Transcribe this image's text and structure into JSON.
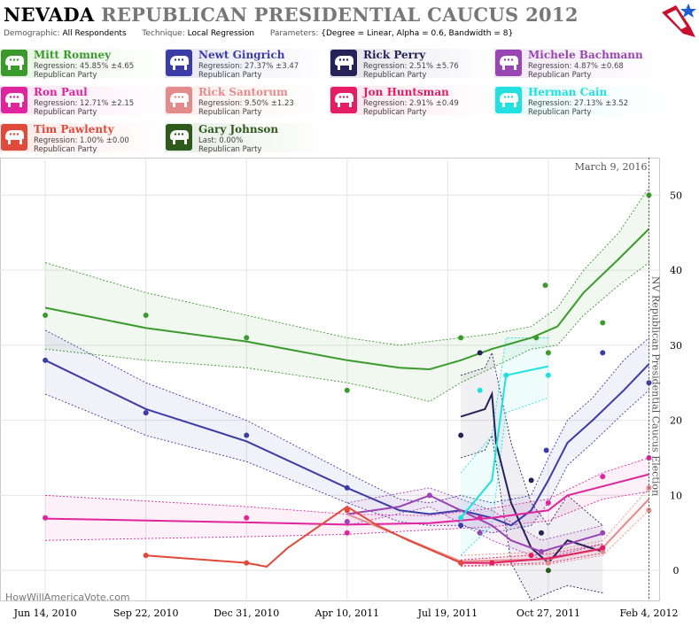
{
  "header": {
    "title_state": "NEVADA",
    "title_rest": "REPUBLICAN PRESIDENTIAL CAUCUS 2012",
    "demographic_label": "Demographic:",
    "demographic_value": "All Respondents",
    "technique_label": "Technique:",
    "technique_value": "Local Regression",
    "parameters_label": "Parameters:",
    "parameters_value": "{Degree = Linear, Alpha = 0.6, Bandwidth = 8}"
  },
  "candidates": [
    {
      "name": "Mitt Romney",
      "stat": "Regression: 45.85% ±4.65",
      "party": "Republican Party",
      "color": "#3a9a2c",
      "bg": "#e8f4e4"
    },
    {
      "name": "Newt Gingrich",
      "stat": "Regression: 27.37% ±3.47",
      "party": "Republican Party",
      "color": "#3c3ca8",
      "bg": "#e6e6f4"
    },
    {
      "name": "Rick Perry",
      "stat": "Regression: 2.51% ±5.76",
      "party": "Republican Party",
      "color": "#25225a",
      "bg": "#e4e3ec"
    },
    {
      "name": "Michele Bachmann",
      "stat": "Regression: 4.87% ±0.68",
      "party": "Republican Party",
      "color": "#9a45b4",
      "bg": "#f1e6f5"
    },
    {
      "name": "Ron Paul",
      "stat": "Regression: 12.71% ±2.15",
      "party": "Republican Party",
      "color": "#e0249e",
      "bg": "#fbe4f2"
    },
    {
      "name": "Rick Santorum",
      "stat": "Regression: 9.50% ±1.23",
      "party": "Republican Party",
      "color": "#e48c8c",
      "bg": "#fbeeee"
    },
    {
      "name": "Jon Huntsman",
      "stat": "Regression: 2.91% ±0.49",
      "party": "Republican Party",
      "color": "#e41e64",
      "bg": "#fbe4ec"
    },
    {
      "name": "Herman Cain",
      "stat": "Regression: 27.13% ±3.52",
      "party": "Republican Party",
      "color": "#22e0e0",
      "bg": "#e2fafa"
    },
    {
      "name": "Tim Pawlenty",
      "stat": "Regression: 1.00% ±0.00",
      "party": "Republican Party",
      "color": "#e04a3a",
      "bg": "#fbe8e6"
    },
    {
      "name": "Gary Johnson",
      "stat": "Last: 0.00%",
      "party": "Republican Party",
      "color": "#2e5a1e",
      "bg": "#e6ede3"
    }
  ],
  "watermark": "HowWillAmericaVote.com",
  "chart_data": {
    "type": "line",
    "election_label": "NV Republican Presidential Caucus Election",
    "date_label": "March 9, 2016",
    "x_ticks": [
      "Jun 14, 2010",
      "Sep 22, 2010",
      "Dec 31, 2010",
      "Apr 10, 2011",
      "Jul 19, 2011",
      "Oct 27, 2011",
      "Feb 4, 2012"
    ],
    "y_ticks": [
      0,
      10,
      20,
      30,
      40,
      50
    ],
    "ylim": [
      -4,
      55
    ],
    "xlim": [
      "2010-04-30",
      "2012-02-15"
    ],
    "election_date": "2012-02-04",
    "series": [
      {
        "name": "Mitt Romney",
        "color": "#3a9a2c",
        "line": [
          [
            "2010-06-14",
            35
          ],
          [
            "2010-09-22",
            32.3
          ],
          [
            "2010-12-31",
            30.5
          ],
          [
            "2011-04-10",
            28
          ],
          [
            "2011-06-01",
            27
          ],
          [
            "2011-07-01",
            26.8
          ],
          [
            "2011-08-01",
            28
          ],
          [
            "2011-09-01",
            29.5
          ],
          [
            "2011-10-10",
            31
          ],
          [
            "2011-11-05",
            32.5
          ],
          [
            "2011-12-01",
            37
          ],
          [
            "2012-01-05",
            41.5
          ],
          [
            "2012-02-04",
            45.5
          ]
        ],
        "band": [
          [
            "2010-06-14",
            41,
            29.5
          ],
          [
            "2010-09-22",
            37,
            28
          ],
          [
            "2010-12-31",
            34,
            27
          ],
          [
            "2011-04-10",
            31,
            25
          ],
          [
            "2011-06-01",
            30,
            23.5
          ],
          [
            "2011-07-01",
            30.5,
            22.5
          ],
          [
            "2011-08-01",
            31,
            25
          ],
          [
            "2011-09-01",
            31.5,
            27
          ],
          [
            "2011-10-10",
            32.5,
            29.5
          ],
          [
            "2011-11-05",
            35,
            30
          ],
          [
            "2011-12-01",
            40,
            34
          ],
          [
            "2012-01-05",
            45,
            38
          ],
          [
            "2012-02-04",
            51,
            41
          ]
        ],
        "points": [
          [
            "2010-06-14",
            34
          ],
          [
            "2010-09-22",
            34
          ],
          [
            "2010-12-31",
            31
          ],
          [
            "2011-04-10",
            24
          ],
          [
            "2011-08-01",
            31
          ],
          [
            "2011-10-15",
            31
          ],
          [
            "2011-10-24",
            38
          ],
          [
            "2011-10-27",
            29
          ],
          [
            "2011-12-20",
            33
          ],
          [
            "2012-02-04",
            50
          ]
        ]
      },
      {
        "name": "Newt Gingrich",
        "color": "#3c3ca8",
        "line": [
          [
            "2010-06-14",
            28
          ],
          [
            "2010-09-22",
            21.5
          ],
          [
            "2010-12-31",
            17.2
          ],
          [
            "2011-04-10",
            11
          ],
          [
            "2011-06-01",
            8
          ],
          [
            "2011-07-01",
            7.5
          ],
          [
            "2011-08-01",
            8
          ],
          [
            "2011-09-01",
            7
          ],
          [
            "2011-09-20",
            6
          ],
          [
            "2011-10-10",
            8
          ],
          [
            "2011-10-27",
            12
          ],
          [
            "2011-11-15",
            17
          ],
          [
            "2011-12-10",
            20
          ],
          [
            "2012-01-10",
            24
          ],
          [
            "2012-02-04",
            27.5
          ]
        ],
        "band": [
          [
            "2010-06-14",
            32,
            23.5
          ],
          [
            "2010-09-22",
            25,
            18
          ],
          [
            "2010-12-31",
            20,
            14.5
          ],
          [
            "2011-04-10",
            13,
            9
          ],
          [
            "2011-06-01",
            9.5,
            6.5
          ],
          [
            "2011-07-01",
            9,
            6
          ],
          [
            "2011-08-01",
            10,
            6
          ],
          [
            "2011-09-01",
            9,
            5
          ],
          [
            "2011-10-10",
            10,
            6
          ],
          [
            "2011-10-27",
            15,
            9
          ],
          [
            "2011-11-15",
            20,
            14
          ],
          [
            "2011-12-10",
            23,
            17
          ],
          [
            "2012-01-10",
            28,
            21
          ],
          [
            "2012-02-04",
            31,
            24
          ]
        ],
        "points": [
          [
            "2010-06-14",
            28
          ],
          [
            "2010-09-22",
            21
          ],
          [
            "2010-12-31",
            18
          ],
          [
            "2011-04-10",
            11
          ],
          [
            "2011-08-01",
            6
          ],
          [
            "2011-10-25",
            16
          ],
          [
            "2011-12-20",
            29
          ],
          [
            "2012-02-04",
            25
          ]
        ]
      },
      {
        "name": "Rick Perry",
        "color": "#25225a",
        "line": [
          [
            "2011-08-01",
            20.5
          ],
          [
            "2011-08-25",
            21.5
          ],
          [
            "2011-09-01",
            23.5
          ],
          [
            "2011-09-05",
            17
          ],
          [
            "2011-09-20",
            9
          ],
          [
            "2011-10-10",
            3
          ],
          [
            "2011-10-27",
            1
          ],
          [
            "2011-11-15",
            4
          ],
          [
            "2011-12-20",
            2.5
          ]
        ],
        "band": [
          [
            "2011-08-01",
            26,
            15
          ],
          [
            "2011-08-25",
            27,
            16
          ],
          [
            "2011-09-01",
            29,
            18
          ],
          [
            "2011-09-20",
            17,
            1
          ],
          [
            "2011-10-10",
            9,
            -4
          ],
          [
            "2011-10-27",
            6,
            -3
          ],
          [
            "2011-11-15",
            10,
            -2
          ],
          [
            "2011-12-20",
            6,
            -3
          ]
        ],
        "points": [
          [
            "2011-08-01",
            18
          ],
          [
            "2011-08-20",
            29
          ],
          [
            "2011-10-10",
            12
          ],
          [
            "2011-10-20",
            5
          ],
          [
            "2011-12-20",
            3
          ]
        ]
      },
      {
        "name": "Michele Bachmann",
        "color": "#9a45b4",
        "line": [
          [
            "2011-04-10",
            7.5
          ],
          [
            "2011-06-01",
            8.5
          ],
          [
            "2011-07-01",
            10
          ],
          [
            "2011-08-01",
            8
          ],
          [
            "2011-09-01",
            6
          ],
          [
            "2011-09-20",
            4
          ],
          [
            "2011-10-20",
            2.5
          ],
          [
            "2011-12-20",
            4.9
          ]
        ],
        "band": [
          [
            "2011-04-10",
            9,
            6
          ],
          [
            "2011-07-01",
            11,
            8.5
          ],
          [
            "2011-09-01",
            8,
            4
          ],
          [
            "2011-10-20",
            4,
            1.5
          ],
          [
            "2011-12-20",
            6,
            3.5
          ]
        ],
        "points": [
          [
            "2011-04-10",
            6.5
          ],
          [
            "2011-07-01",
            10
          ],
          [
            "2011-08-20",
            5
          ],
          [
            "2011-10-20",
            2.5
          ],
          [
            "2011-12-20",
            5
          ]
        ]
      },
      {
        "name": "Ron Paul",
        "color": "#e0249e",
        "line": [
          [
            "2010-06-14",
            6.9
          ],
          [
            "2010-12-31",
            6.4
          ],
          [
            "2011-04-10",
            6.1
          ],
          [
            "2011-07-01",
            6.3
          ],
          [
            "2011-09-01",
            7
          ],
          [
            "2011-10-27",
            8
          ],
          [
            "2011-11-15",
            10
          ],
          [
            "2011-12-20",
            11.2
          ],
          [
            "2012-02-04",
            12.8
          ]
        ],
        "band": [
          [
            "2010-06-14",
            10,
            4
          ],
          [
            "2010-12-31",
            8.5,
            4.5
          ],
          [
            "2011-04-10",
            7.5,
            4.8
          ],
          [
            "2011-07-01",
            7.3,
            5.4
          ],
          [
            "2011-09-01",
            8.3,
            5.8
          ],
          [
            "2011-10-27",
            9.5,
            6.6
          ],
          [
            "2011-12-20",
            13,
            9.5
          ],
          [
            "2012-02-04",
            15,
            10.5
          ]
        ],
        "points": [
          [
            "2010-06-14",
            7
          ],
          [
            "2010-12-31",
            7
          ],
          [
            "2011-04-10",
            5
          ],
          [
            "2011-08-20",
            7
          ],
          [
            "2011-10-27",
            9
          ],
          [
            "2011-12-20",
            12.5
          ],
          [
            "2012-02-04",
            15
          ]
        ]
      },
      {
        "name": "Rick Santorum",
        "color": "#e48c8c",
        "line": [
          [
            "2011-04-10",
            7.5
          ],
          [
            "2011-08-01",
            1.2
          ],
          [
            "2011-10-27",
            1.5
          ],
          [
            "2011-12-20",
            3
          ],
          [
            "2012-01-10",
            6
          ],
          [
            "2012-02-04",
            9.5
          ]
        ],
        "band": [
          [
            "2011-08-01",
            2,
            0.5
          ],
          [
            "2011-10-27",
            2.5,
            0.8
          ],
          [
            "2011-12-20",
            4,
            2
          ],
          [
            "2012-02-04",
            11,
            8
          ]
        ],
        "points": [
          [
            "2011-04-10",
            8
          ],
          [
            "2011-10-27",
            1
          ],
          [
            "2011-12-20",
            2.5
          ],
          [
            "2012-02-04",
            8
          ],
          [
            "2012-02-04",
            11
          ]
        ]
      },
      {
        "name": "Jon Huntsman",
        "color": "#e41e64",
        "line": [
          [
            "2011-08-01",
            1
          ],
          [
            "2011-09-01",
            1
          ],
          [
            "2011-10-27",
            1.6
          ],
          [
            "2011-12-20",
            2.9
          ]
        ],
        "band": [
          [
            "2011-08-01",
            1.4,
            0.6
          ],
          [
            "2011-10-27",
            2.2,
            1
          ],
          [
            "2011-12-20",
            3.5,
            2.3
          ]
        ],
        "points": [
          [
            "2011-08-01",
            1
          ],
          [
            "2011-09-01",
            1
          ],
          [
            "2011-10-10",
            2
          ],
          [
            "2011-12-20",
            3
          ]
        ]
      },
      {
        "name": "Herman Cain",
        "color": "#22e0e0",
        "line": [
          [
            "2011-08-01",
            7
          ],
          [
            "2011-09-01",
            12
          ],
          [
            "2011-09-15",
            26
          ],
          [
            "2011-10-27",
            27.2
          ]
        ],
        "band": [
          [
            "2011-08-01",
            13,
            2
          ],
          [
            "2011-09-01",
            18,
            6
          ],
          [
            "2011-09-15",
            31,
            21
          ],
          [
            "2011-10-27",
            31,
            23
          ]
        ],
        "points": [
          [
            "2011-08-01",
            7
          ],
          [
            "2011-08-20",
            24
          ],
          [
            "2011-09-15",
            26
          ],
          [
            "2011-10-27",
            26
          ]
        ]
      },
      {
        "name": "Tim Pawlenty",
        "color": "#e04a3a",
        "line": [
          [
            "2010-09-22",
            2
          ],
          [
            "2010-12-31",
            1
          ],
          [
            "2011-01-20",
            0.5
          ],
          [
            "2011-02-10",
            3
          ],
          [
            "2011-04-10",
            8.5
          ],
          [
            "2011-05-10",
            6
          ],
          [
            "2011-06-10",
            4
          ],
          [
            "2011-08-01",
            1
          ]
        ],
        "band": [],
        "points": [
          [
            "2010-09-22",
            2
          ],
          [
            "2010-12-31",
            1
          ],
          [
            "2011-04-10",
            8
          ],
          [
            "2011-08-01",
            1
          ]
        ]
      },
      {
        "name": "Gary Johnson",
        "color": "#2e5a1e",
        "line": [],
        "band": [],
        "points": [
          [
            "2011-10-27",
            0
          ]
        ]
      }
    ]
  }
}
